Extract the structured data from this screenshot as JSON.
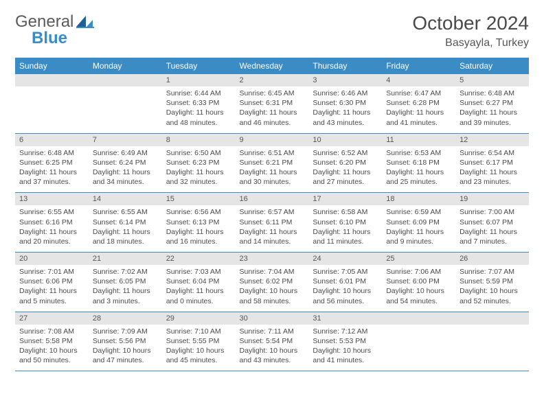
{
  "brand": {
    "word1": "General",
    "word2": "Blue"
  },
  "title": "October 2024",
  "location": "Basyayla, Turkey",
  "colors": {
    "header_bg": "#3b8bc4",
    "daybar_bg": "#e5e5e5",
    "text": "#4a4a4a",
    "rule": "#3b8bc4"
  },
  "day_names": [
    "Sunday",
    "Monday",
    "Tuesday",
    "Wednesday",
    "Thursday",
    "Friday",
    "Saturday"
  ],
  "weeks": [
    [
      null,
      null,
      {
        "n": "1",
        "sr": "Sunrise: 6:44 AM",
        "ss": "Sunset: 6:33 PM",
        "dl": "Daylight: 11 hours and 48 minutes."
      },
      {
        "n": "2",
        "sr": "Sunrise: 6:45 AM",
        "ss": "Sunset: 6:31 PM",
        "dl": "Daylight: 11 hours and 46 minutes."
      },
      {
        "n": "3",
        "sr": "Sunrise: 6:46 AM",
        "ss": "Sunset: 6:30 PM",
        "dl": "Daylight: 11 hours and 43 minutes."
      },
      {
        "n": "4",
        "sr": "Sunrise: 6:47 AM",
        "ss": "Sunset: 6:28 PM",
        "dl": "Daylight: 11 hours and 41 minutes."
      },
      {
        "n": "5",
        "sr": "Sunrise: 6:48 AM",
        "ss": "Sunset: 6:27 PM",
        "dl": "Daylight: 11 hours and 39 minutes."
      }
    ],
    [
      {
        "n": "6",
        "sr": "Sunrise: 6:48 AM",
        "ss": "Sunset: 6:25 PM",
        "dl": "Daylight: 11 hours and 37 minutes."
      },
      {
        "n": "7",
        "sr": "Sunrise: 6:49 AM",
        "ss": "Sunset: 6:24 PM",
        "dl": "Daylight: 11 hours and 34 minutes."
      },
      {
        "n": "8",
        "sr": "Sunrise: 6:50 AM",
        "ss": "Sunset: 6:23 PM",
        "dl": "Daylight: 11 hours and 32 minutes."
      },
      {
        "n": "9",
        "sr": "Sunrise: 6:51 AM",
        "ss": "Sunset: 6:21 PM",
        "dl": "Daylight: 11 hours and 30 minutes."
      },
      {
        "n": "10",
        "sr": "Sunrise: 6:52 AM",
        "ss": "Sunset: 6:20 PM",
        "dl": "Daylight: 11 hours and 27 minutes."
      },
      {
        "n": "11",
        "sr": "Sunrise: 6:53 AM",
        "ss": "Sunset: 6:18 PM",
        "dl": "Daylight: 11 hours and 25 minutes."
      },
      {
        "n": "12",
        "sr": "Sunrise: 6:54 AM",
        "ss": "Sunset: 6:17 PM",
        "dl": "Daylight: 11 hours and 23 minutes."
      }
    ],
    [
      {
        "n": "13",
        "sr": "Sunrise: 6:55 AM",
        "ss": "Sunset: 6:16 PM",
        "dl": "Daylight: 11 hours and 20 minutes."
      },
      {
        "n": "14",
        "sr": "Sunrise: 6:55 AM",
        "ss": "Sunset: 6:14 PM",
        "dl": "Daylight: 11 hours and 18 minutes."
      },
      {
        "n": "15",
        "sr": "Sunrise: 6:56 AM",
        "ss": "Sunset: 6:13 PM",
        "dl": "Daylight: 11 hours and 16 minutes."
      },
      {
        "n": "16",
        "sr": "Sunrise: 6:57 AM",
        "ss": "Sunset: 6:11 PM",
        "dl": "Daylight: 11 hours and 14 minutes."
      },
      {
        "n": "17",
        "sr": "Sunrise: 6:58 AM",
        "ss": "Sunset: 6:10 PM",
        "dl": "Daylight: 11 hours and 11 minutes."
      },
      {
        "n": "18",
        "sr": "Sunrise: 6:59 AM",
        "ss": "Sunset: 6:09 PM",
        "dl": "Daylight: 11 hours and 9 minutes."
      },
      {
        "n": "19",
        "sr": "Sunrise: 7:00 AM",
        "ss": "Sunset: 6:07 PM",
        "dl": "Daylight: 11 hours and 7 minutes."
      }
    ],
    [
      {
        "n": "20",
        "sr": "Sunrise: 7:01 AM",
        "ss": "Sunset: 6:06 PM",
        "dl": "Daylight: 11 hours and 5 minutes."
      },
      {
        "n": "21",
        "sr": "Sunrise: 7:02 AM",
        "ss": "Sunset: 6:05 PM",
        "dl": "Daylight: 11 hours and 3 minutes."
      },
      {
        "n": "22",
        "sr": "Sunrise: 7:03 AM",
        "ss": "Sunset: 6:04 PM",
        "dl": "Daylight: 11 hours and 0 minutes."
      },
      {
        "n": "23",
        "sr": "Sunrise: 7:04 AM",
        "ss": "Sunset: 6:02 PM",
        "dl": "Daylight: 10 hours and 58 minutes."
      },
      {
        "n": "24",
        "sr": "Sunrise: 7:05 AM",
        "ss": "Sunset: 6:01 PM",
        "dl": "Daylight: 10 hours and 56 minutes."
      },
      {
        "n": "25",
        "sr": "Sunrise: 7:06 AM",
        "ss": "Sunset: 6:00 PM",
        "dl": "Daylight: 10 hours and 54 minutes."
      },
      {
        "n": "26",
        "sr": "Sunrise: 7:07 AM",
        "ss": "Sunset: 5:59 PM",
        "dl": "Daylight: 10 hours and 52 minutes."
      }
    ],
    [
      {
        "n": "27",
        "sr": "Sunrise: 7:08 AM",
        "ss": "Sunset: 5:58 PM",
        "dl": "Daylight: 10 hours and 50 minutes."
      },
      {
        "n": "28",
        "sr": "Sunrise: 7:09 AM",
        "ss": "Sunset: 5:56 PM",
        "dl": "Daylight: 10 hours and 47 minutes."
      },
      {
        "n": "29",
        "sr": "Sunrise: 7:10 AM",
        "ss": "Sunset: 5:55 PM",
        "dl": "Daylight: 10 hours and 45 minutes."
      },
      {
        "n": "30",
        "sr": "Sunrise: 7:11 AM",
        "ss": "Sunset: 5:54 PM",
        "dl": "Daylight: 10 hours and 43 minutes."
      },
      {
        "n": "31",
        "sr": "Sunrise: 7:12 AM",
        "ss": "Sunset: 5:53 PM",
        "dl": "Daylight: 10 hours and 41 minutes."
      },
      null,
      null
    ]
  ]
}
